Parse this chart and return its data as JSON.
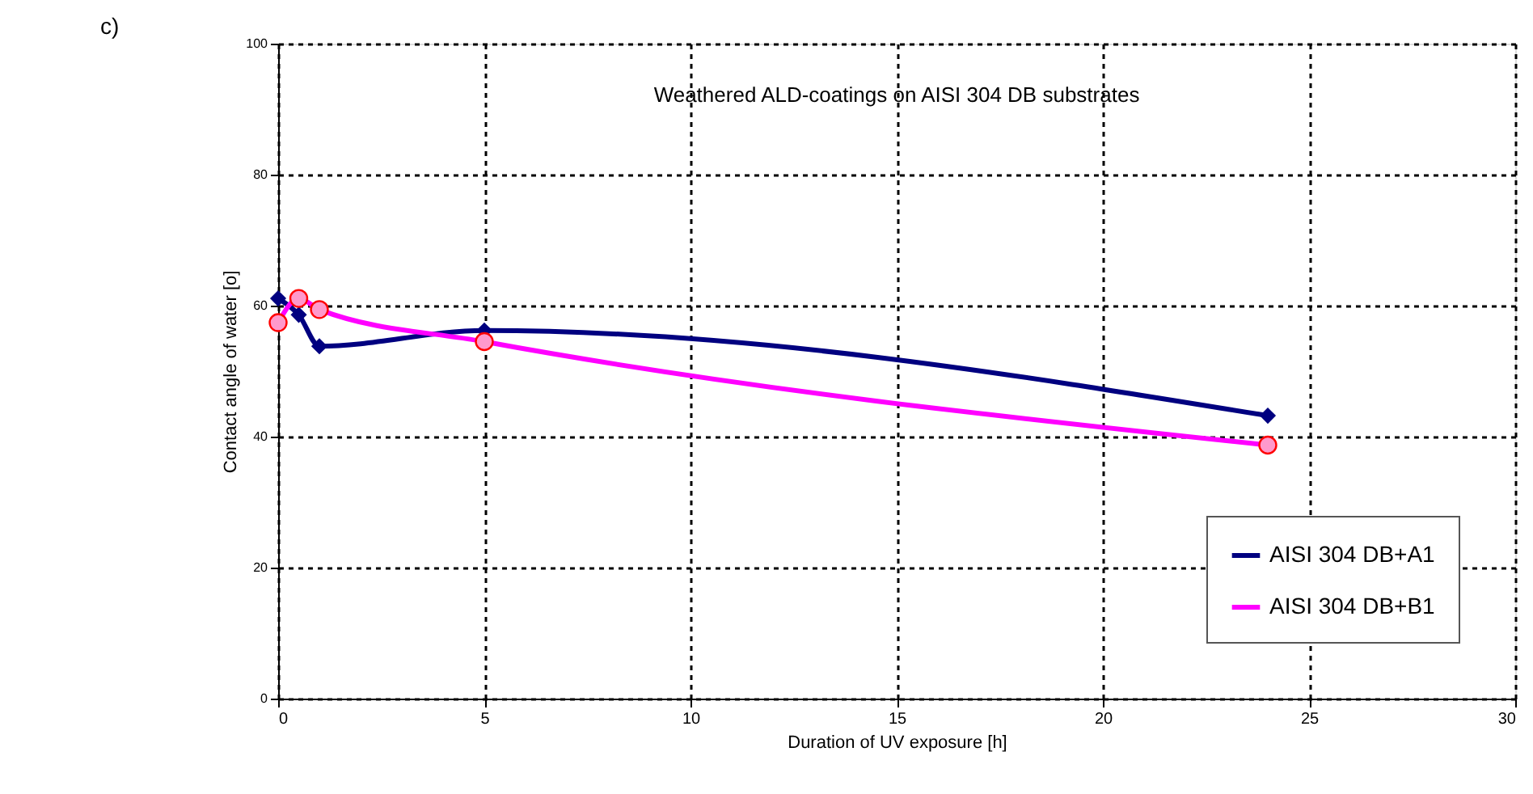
{
  "chart_data": {
    "type": "line",
    "xlabel": "Duration of UV exposure [h]",
    "ylabel": "Contact angle of water [o]",
    "annotations": [
      "Weathered ALD-coatings on AISI 304 DB substrates",
      "c)"
    ],
    "series": [
      {
        "name": "AISI 304 DB+A1",
        "color": "#000080",
        "marker": "diamond",
        "x": [
          0,
          0.5,
          1,
          5,
          24
        ],
        "values": [
          61.1,
          58.6,
          53.8,
          56.2,
          43.2
        ]
      },
      {
        "name": "AISI 304 DB+B1",
        "color": "#ff00ff",
        "marker": "circle",
        "x": [
          0,
          0.5,
          1,
          5,
          24
        ],
        "values": [
          57.4,
          61.1,
          59.4,
          54.5,
          38.7
        ]
      }
    ],
    "xlim": [
      0,
      30
    ],
    "xticks": [
      0,
      5,
      10,
      15,
      20,
      25,
      30
    ],
    "ylim": [
      0,
      100
    ],
    "yticks": [
      0,
      20,
      40,
      60,
      80,
      100
    ],
    "grid": true,
    "legend": "bottom right",
    "line_style": "solid"
  }
}
